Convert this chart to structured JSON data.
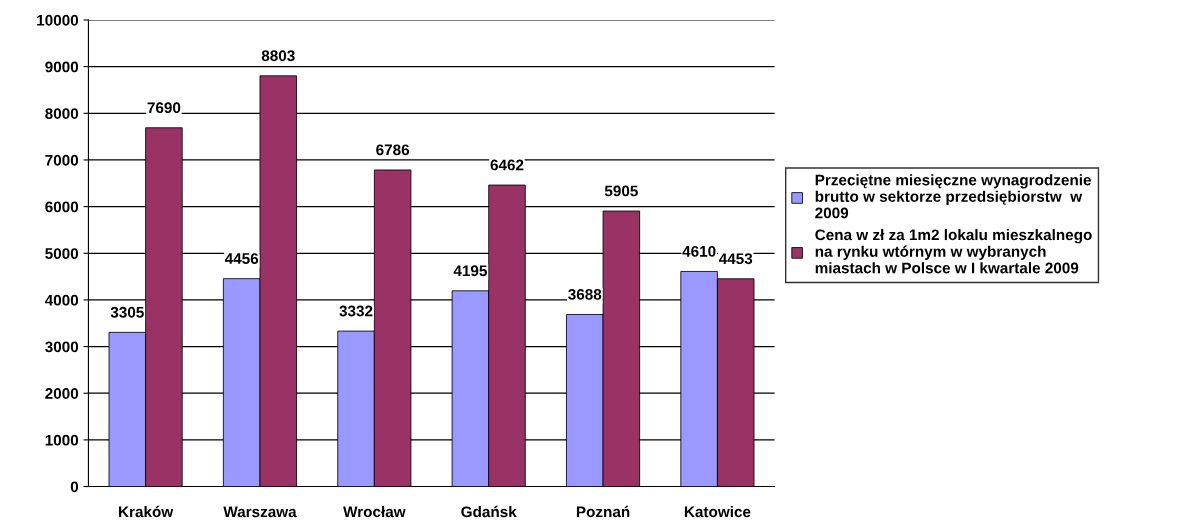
{
  "chart_data": {
    "type": "bar",
    "categories": [
      "Kraków",
      "Warszawa",
      "Wrocław",
      "Gdańsk",
      "Poznań",
      "Katowice"
    ],
    "series": [
      {
        "name": "Przeciętne miesięczne wynagrodzenie brutto w sektorze przedsiębiorstw  w 2009",
        "color": "#9999ff",
        "values": [
          3305,
          4456,
          3332,
          4195,
          3688,
          4610
        ]
      },
      {
        "name": "Cena w zł za 1m2 lokalu mieszkalnego na rynku wtórnym w wybranych miastach w Polsce w I kwartale 2009",
        "color": "#993366",
        "values": [
          7690,
          8803,
          6786,
          6462,
          5905,
          4453
        ]
      }
    ],
    "ylim": [
      0,
      10000
    ],
    "yticks": [
      0,
      1000,
      2000,
      3000,
      4000,
      5000,
      6000,
      7000,
      8000,
      9000,
      10000
    ],
    "grid": "y",
    "legend": "right",
    "data_labels": true
  }
}
